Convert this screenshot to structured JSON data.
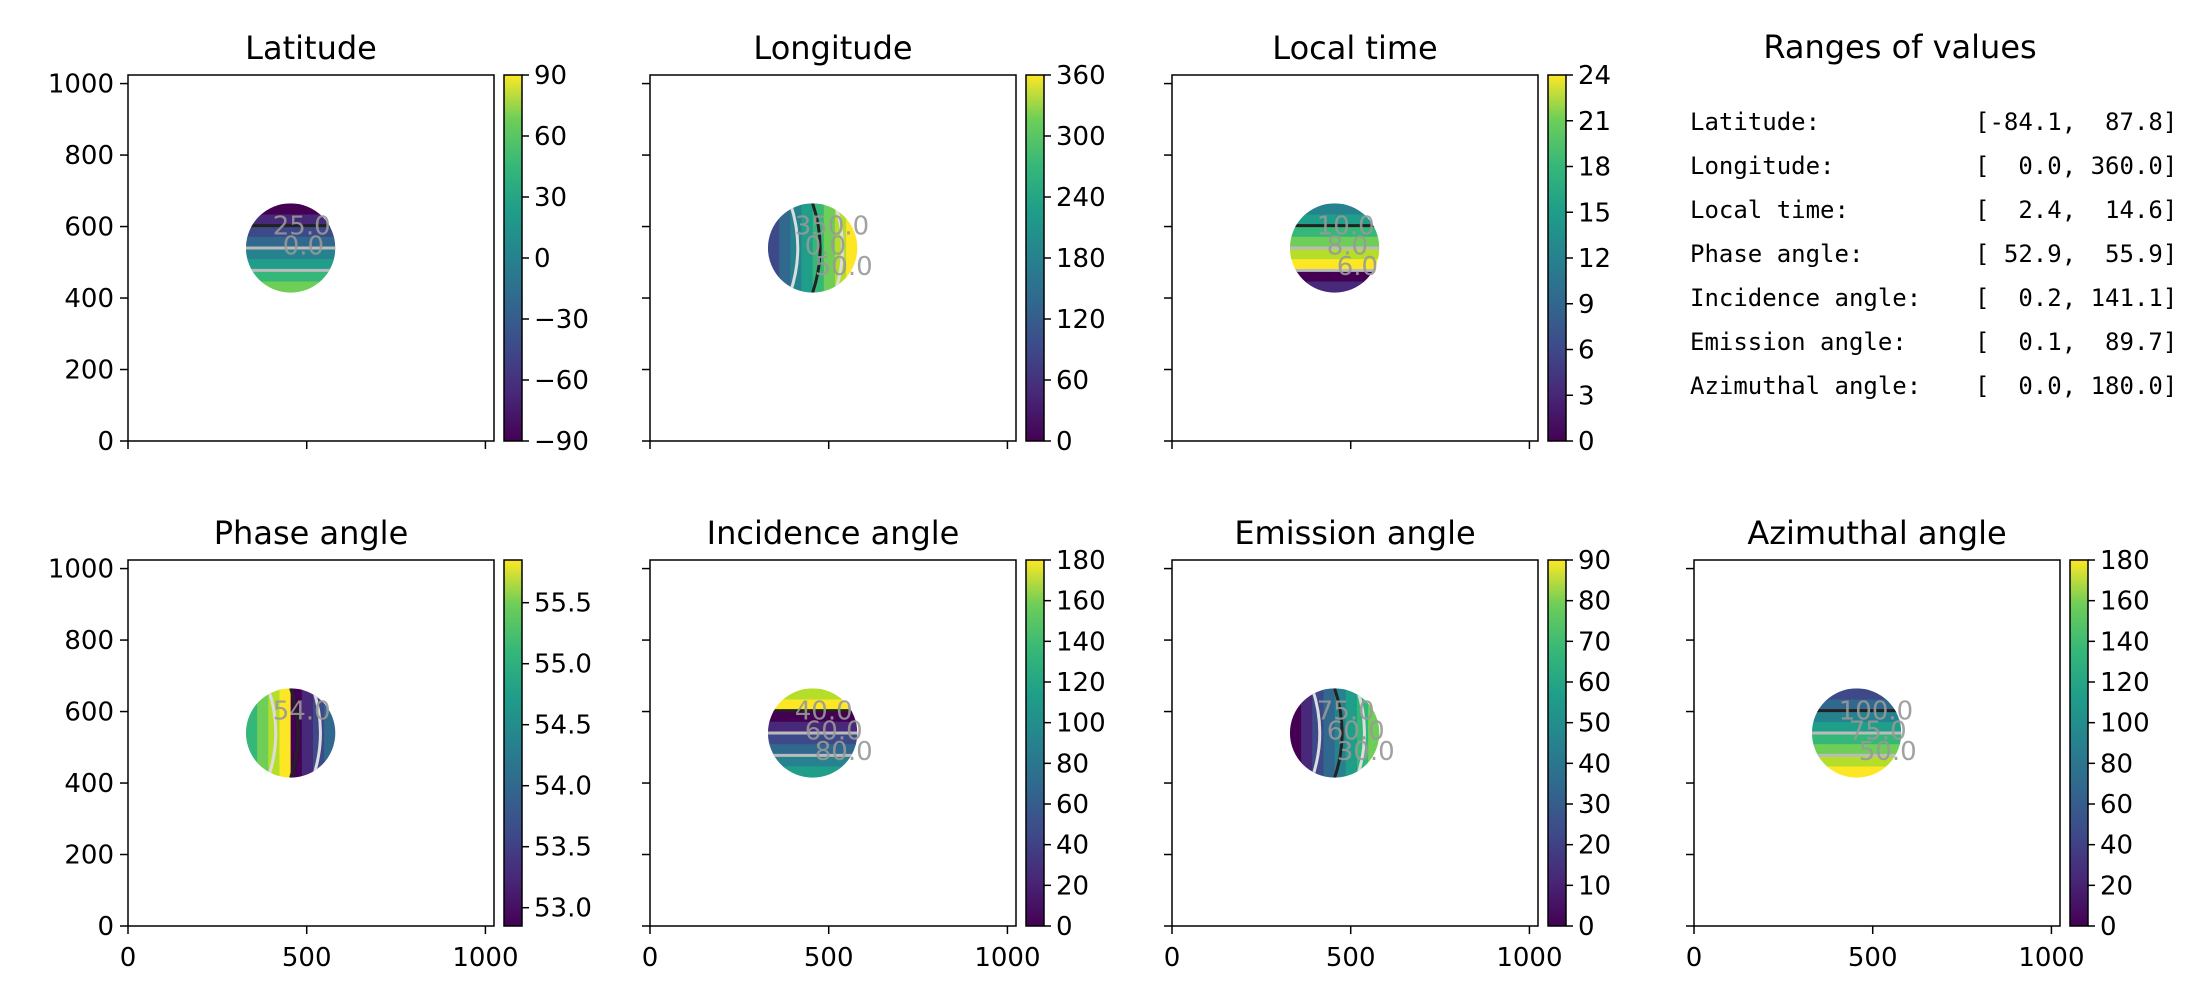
{
  "figure": {
    "panel_titles": [
      "Latitude",
      "Longitude",
      "Local time",
      "Phase angle",
      "Incidence angle",
      "Emission angle",
      "Azimuthal angle"
    ],
    "ranges_title": "Ranges of values",
    "ranges": [
      {
        "label": "Latitude:",
        "value": "[-84.1,  87.8]"
      },
      {
        "label": "Longitude:",
        "value": "[  0.0, 360.0]"
      },
      {
        "label": "Local time:",
        "value": "[  2.4,  14.6]"
      },
      {
        "label": "Phase angle:",
        "value": "[ 52.9,  55.9]"
      },
      {
        "label": "Incidence angle:",
        "value": "[  0.2, 141.1]"
      },
      {
        "label": "Emission angle:",
        "value": "[  0.1,  89.7]"
      },
      {
        "label": "Azimuthal angle:",
        "value": "[  0.0, 180.0]"
      }
    ]
  },
  "chart_data": [
    {
      "type": "heatmap",
      "title": "Latitude",
      "xlim": [
        0,
        1024
      ],
      "ylim": [
        0,
        1024
      ],
      "xticks": [
        0,
        500,
        1000
      ],
      "yticks": [
        0,
        200,
        400,
        600,
        800,
        1000
      ],
      "colorbar": {
        "range": [
          -90,
          90
        ],
        "ticks": [
          90,
          60,
          30,
          0,
          -30,
          -60,
          -90
        ],
        "tick_labels": [
          "90",
          "60",
          "30",
          "0",
          "−30",
          "−60",
          "−90"
        ],
        "colormap": "viridis"
      },
      "contour_labels": [
        "25.0",
        "0.0"
      ],
      "disc": {
        "center": [
          455,
          540
        ],
        "radius": 125
      }
    },
    {
      "type": "heatmap",
      "title": "Longitude",
      "xlim": [
        0,
        1024
      ],
      "ylim": [
        0,
        1024
      ],
      "xticks": [
        0,
        500,
        1000
      ],
      "yticks": [
        0,
        200,
        400,
        600,
        800,
        1000
      ],
      "colorbar": {
        "range": [
          0,
          360
        ],
        "ticks": [
          360,
          300,
          240,
          180,
          120,
          60,
          0
        ],
        "tick_labels": [
          "360",
          "300",
          "240",
          "180",
          "120",
          "60",
          "0"
        ],
        "colormap": "viridis"
      },
      "contour_labels": [
        "350.0",
        "0.0",
        "50.0"
      ],
      "disc": {
        "center": [
          455,
          540
        ],
        "radius": 125
      }
    },
    {
      "type": "heatmap",
      "title": "Local time",
      "xlim": [
        0,
        1024
      ],
      "ylim": [
        0,
        1024
      ],
      "xticks": [
        0,
        500,
        1000
      ],
      "yticks": [
        0,
        200,
        400,
        600,
        800,
        1000
      ],
      "colorbar": {
        "range": [
          0,
          24
        ],
        "ticks": [
          24,
          21,
          18,
          15,
          12,
          9,
          6,
          3,
          0
        ],
        "tick_labels": [
          "24",
          "21",
          "18",
          "15",
          "12",
          "9",
          "6",
          "3",
          "0"
        ],
        "colormap": "viridis"
      },
      "contour_labels": [
        "10.0",
        "8.0",
        "6.0"
      ],
      "disc": {
        "center": [
          455,
          540
        ],
        "radius": 125
      }
    },
    {
      "type": "heatmap",
      "title": "Phase angle",
      "xlim": [
        0,
        1024
      ],
      "ylim": [
        0,
        1024
      ],
      "xticks": [
        0,
        500,
        1000
      ],
      "yticks": [
        0,
        200,
        400,
        600,
        800,
        1000
      ],
      "colorbar": {
        "range": [
          52.85,
          55.85
        ],
        "ticks": [
          55.5,
          55.0,
          54.5,
          54.0,
          53.5,
          53.0
        ],
        "tick_labels": [
          "55.5",
          "55.0",
          "54.5",
          "54.0",
          "53.5",
          "53.0"
        ],
        "colormap": "viridis"
      },
      "contour_labels": [
        "54.0"
      ],
      "disc": {
        "center": [
          455,
          540
        ],
        "radius": 125
      }
    },
    {
      "type": "heatmap",
      "title": "Incidence angle",
      "xlim": [
        0,
        1024
      ],
      "ylim": [
        0,
        1024
      ],
      "xticks": [
        0,
        500,
        1000
      ],
      "yticks": [
        0,
        200,
        400,
        600,
        800,
        1000
      ],
      "colorbar": {
        "range": [
          0,
          180
        ],
        "ticks": [
          180,
          160,
          140,
          120,
          100,
          80,
          60,
          40,
          20,
          0
        ],
        "tick_labels": [
          "180",
          "160",
          "140",
          "120",
          "100",
          "80",
          "60",
          "40",
          "20",
          "0"
        ],
        "colormap": "viridis"
      },
      "contour_labels": [
        "40.0",
        "60.0",
        "80.0"
      ],
      "disc": {
        "center": [
          455,
          540
        ],
        "radius": 125
      }
    },
    {
      "type": "heatmap",
      "title": "Emission angle",
      "xlim": [
        0,
        1024
      ],
      "ylim": [
        0,
        1024
      ],
      "xticks": [
        0,
        500,
        1000
      ],
      "yticks": [
        0,
        200,
        400,
        600,
        800,
        1000
      ],
      "colorbar": {
        "range": [
          0,
          90
        ],
        "ticks": [
          90,
          80,
          70,
          60,
          50,
          40,
          30,
          20,
          10,
          0
        ],
        "tick_labels": [
          "90",
          "80",
          "70",
          "60",
          "50",
          "40",
          "30",
          "20",
          "10",
          "0"
        ],
        "colormap": "viridis"
      },
      "contour_labels": [
        "75.0",
        "60.0",
        "30.0"
      ],
      "disc": {
        "center": [
          455,
          540
        ],
        "radius": 125
      }
    },
    {
      "type": "heatmap",
      "title": "Azimuthal angle",
      "xlim": [
        0,
        1024
      ],
      "ylim": [
        0,
        1024
      ],
      "xticks": [
        0,
        500,
        1000
      ],
      "yticks": [
        0,
        200,
        400,
        600,
        800,
        1000
      ],
      "colorbar": {
        "range": [
          0,
          180
        ],
        "ticks": [
          180,
          160,
          140,
          120,
          100,
          80,
          60,
          40,
          20,
          0
        ],
        "tick_labels": [
          "180",
          "160",
          "140",
          "120",
          "100",
          "80",
          "60",
          "40",
          "20",
          "0"
        ],
        "colormap": "viridis"
      },
      "contour_labels": [
        "100.0",
        "75.0",
        "50.0"
      ],
      "disc": {
        "center": [
          455,
          540
        ],
        "radius": 125
      }
    }
  ]
}
